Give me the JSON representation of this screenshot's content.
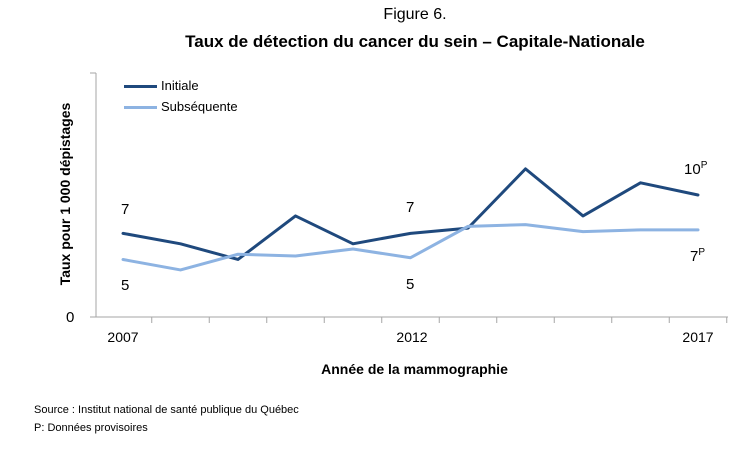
{
  "figure_label": "Figure 6.",
  "chart_data": {
    "type": "line",
    "title": "Taux de détection du cancer du sein – Capitale-Nationale",
    "xlabel": "Année de la mammographie",
    "ylabel": "Taux pour 1 000 dépistages",
    "x": [
      2007,
      2008,
      2009,
      2010,
      2011,
      2012,
      2013,
      2014,
      2015,
      2016,
      2017
    ],
    "x_tick_labels": [
      "2007",
      "2012",
      "2017"
    ],
    "y_tick_labels": [
      "0"
    ],
    "ylim": [
      0,
      14
    ],
    "legend_position": "top-left",
    "grid": false,
    "series": [
      {
        "name": "Initiale",
        "color": "#1f497d",
        "values": [
          4.8,
          4.2,
          3.3,
          5.8,
          4.2,
          4.8,
          5.1,
          8.5,
          5.8,
          7.7,
          7.0
        ]
      },
      {
        "name": "Subséquente",
        "color": "#8db3e2",
        "values": [
          3.3,
          2.7,
          3.6,
          3.5,
          3.9,
          3.4,
          5.2,
          5.3,
          4.9,
          5.0,
          5.0
        ]
      }
    ],
    "annotations": [
      {
        "text": "7",
        "sup": ""
      },
      {
        "text": "5",
        "sup": ""
      },
      {
        "text": "7",
        "sup": ""
      },
      {
        "text": "5",
        "sup": ""
      },
      {
        "text": "10",
        "sup": "P"
      },
      {
        "text": "7",
        "sup": "P"
      }
    ]
  },
  "notes": {
    "source": "Source : Institut national de santé publique du Québec",
    "provisional": "P: Données provisoires"
  }
}
